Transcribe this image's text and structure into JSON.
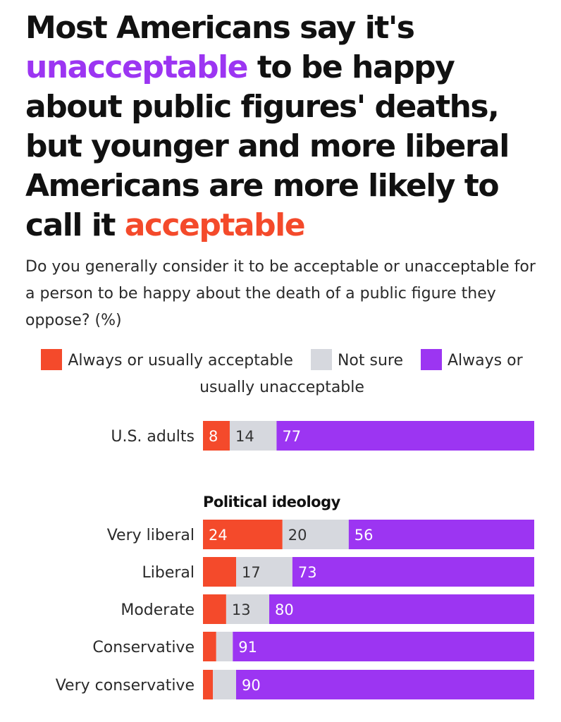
{
  "title": {
    "part1": "Most Americans say it's ",
    "highlight_negative": "unacceptable",
    "part2": " to be happy about public figures' deaths, but younger and more liberal Americans are more likely to call it ",
    "highlight_positive": "acceptable"
  },
  "subtitle": "Do you generally consider it to be acceptable or unacceptable for a person to be happy about the death of a public figure they oppose? (%)",
  "colors": {
    "acceptable": "#f44a2b",
    "not_sure": "#d6d8de",
    "unacceptable": "#9c35f2",
    "title_negative": "#9c35f2",
    "title_positive": "#f44a2b"
  },
  "chart_data": {
    "type": "bar",
    "orientation": "horizontal",
    "stacked": true,
    "legend_placement": "top",
    "series": [
      {
        "name": "Always or usually acceptable",
        "color": "#f44a2b"
      },
      {
        "name": "Not sure",
        "color": "#d6d8de"
      },
      {
        "name": "Always or usually unacceptable",
        "color": "#9c35f2"
      }
    ],
    "groups": [
      {
        "heading": "",
        "rows": [
          {
            "label": "U.S. adults",
            "values": [
              8,
              14,
              77
            ],
            "labels": [
              "8",
              "14",
              "77"
            ]
          }
        ]
      },
      {
        "heading": "Political ideology",
        "rows": [
          {
            "label": "Very liberal",
            "values": [
              24,
              20,
              56
            ],
            "labels": [
              "24",
              "20",
              "56"
            ]
          },
          {
            "label": "Liberal",
            "values": [
              10,
              17,
              73
            ],
            "labels": [
              "",
              "17",
              "73"
            ]
          },
          {
            "label": "Moderate",
            "values": [
              7,
              13,
              80
            ],
            "labels": [
              "",
              "13",
              "80"
            ]
          },
          {
            "label": "Conservative",
            "values": [
              4,
              5,
              91
            ],
            "labels": [
              "",
              "",
              "91"
            ]
          },
          {
            "label": "Very conservative",
            "values": [
              3,
              7,
              90
            ],
            "labels": [
              "",
              "",
              "90"
            ]
          }
        ]
      }
    ]
  }
}
